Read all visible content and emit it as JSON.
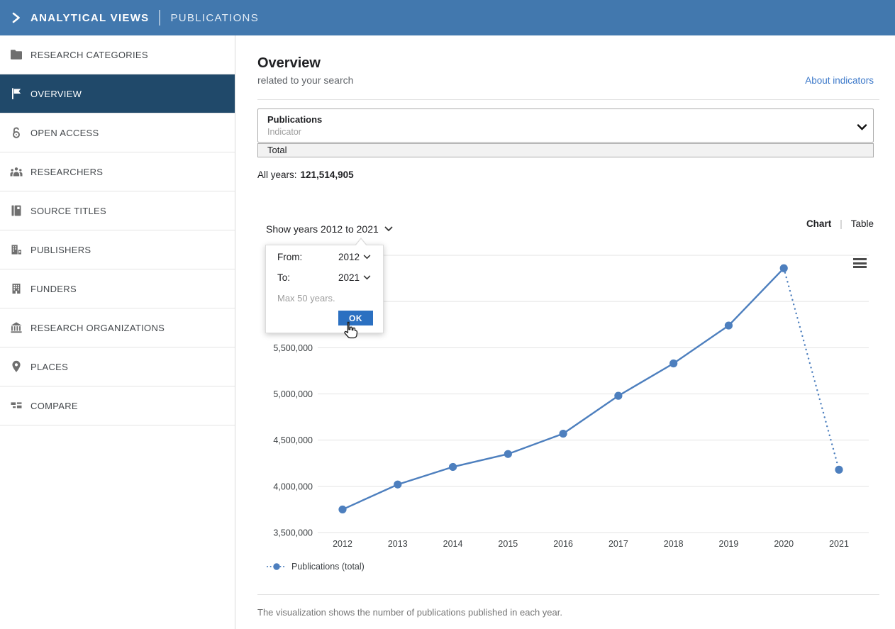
{
  "topbar": {
    "title": "ANALYTICAL VIEWS",
    "section": "PUBLICATIONS"
  },
  "sidebar": {
    "items": [
      {
        "label": "RESEARCH CATEGORIES",
        "icon": "folder-icon",
        "active": false
      },
      {
        "label": "OVERVIEW",
        "icon": "flag-icon",
        "active": true
      },
      {
        "label": "OPEN ACCESS",
        "icon": "open-access-icon",
        "active": false
      },
      {
        "label": "RESEARCHERS",
        "icon": "people-icon",
        "active": false
      },
      {
        "label": "SOURCE TITLES",
        "icon": "journal-icon",
        "active": false
      },
      {
        "label": "PUBLISHERS",
        "icon": "publisher-building-icon",
        "active": false
      },
      {
        "label": "FUNDERS",
        "icon": "building-icon",
        "active": false
      },
      {
        "label": "RESEARCH ORGANIZATIONS",
        "icon": "bank-icon",
        "active": false
      },
      {
        "label": "PLACES",
        "icon": "map-pin-icon",
        "active": false
      },
      {
        "label": "COMPARE",
        "icon": "compare-blocks-icon",
        "active": false
      }
    ]
  },
  "header": {
    "title": "Overview",
    "subtitle": "related to your search",
    "link_label": "About indicators"
  },
  "indicator_box": {
    "title": "Publications",
    "subtitle": "Indicator",
    "selected": "Total"
  },
  "summary": {
    "label": "All years:",
    "value": "121,514,905"
  },
  "chart_controls": {
    "show_years_label": "Show years 2012 to 2021",
    "view_chart": "Chart",
    "divider": "|",
    "view_table": "Table"
  },
  "year_popup": {
    "from_label": "From:",
    "from_value": "2012",
    "to_label": "To:",
    "to_value": "2021",
    "note": "Max 50 years.",
    "ok_label": "OK"
  },
  "chart_data": {
    "type": "line",
    "title": "",
    "xlabel": "",
    "ylabel": "",
    "x": [
      "2012",
      "2013",
      "2014",
      "2015",
      "2016",
      "2017",
      "2018",
      "2019",
      "2020",
      "2021"
    ],
    "series": [
      {
        "name": "Publications (total)",
        "values": [
          3750000,
          4020000,
          4210000,
          4350000,
          4570000,
          4980000,
          5330000,
          5740000,
          6360000,
          4180000
        ]
      }
    ],
    "ylim": [
      3500000,
      6500000
    ],
    "yticks": [
      3500000,
      4000000,
      4500000,
      5000000,
      5500000,
      6000000,
      6500000
    ],
    "grid": true,
    "legend_position": "bottom-left",
    "line_color": "#4d7fbe",
    "dotted_segment_start_index": 8
  },
  "caption": "The visualization shows the number of publications published in each year.",
  "colors": {
    "topbar_bg": "#4278ae",
    "sidebar_active_bg": "#20496a",
    "link_blue": "#3b78c9",
    "ok_button_bg": "#2b70c1",
    "chart_line": "#4d7fbe",
    "gridline": "#e3e3e3"
  }
}
